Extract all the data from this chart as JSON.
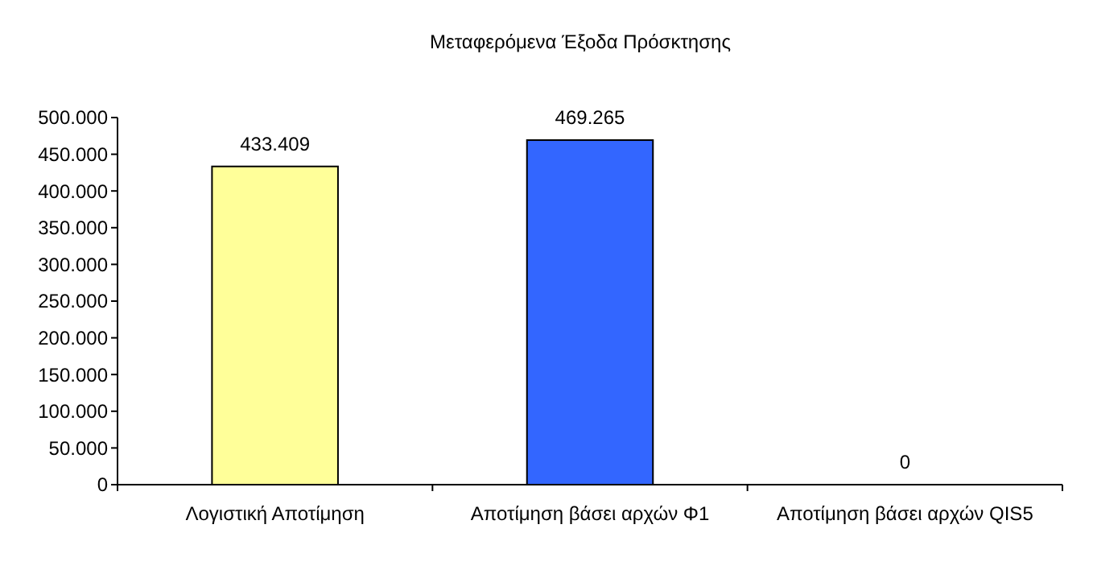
{
  "chart_data": {
    "type": "bar",
    "title": "Μεταφερόμενα Έξοδα Πρόσκτησης",
    "categories": [
      "Λογιστική Αποτίμηση",
      "Αποτίμηση βάσει αρχών Φ1",
      "Αποτίμηση βάσει αρχών QIS5"
    ],
    "values": [
      433409,
      469265,
      0
    ],
    "colors": [
      "#ffff99",
      "#3366ff",
      "#999999"
    ],
    "value_labels": [
      "433.409",
      "469.265",
      "0"
    ],
    "ylim": [
      0,
      500000
    ],
    "yticks": [
      {
        "value": 0,
        "label": "0"
      },
      {
        "value": 50000,
        "label": "50.000"
      },
      {
        "value": 100000,
        "label": "100.000"
      },
      {
        "value": 150000,
        "label": "150.000"
      },
      {
        "value": 200000,
        "label": "200.000"
      },
      {
        "value": 250000,
        "label": "250.000"
      },
      {
        "value": 300000,
        "label": "300.000"
      },
      {
        "value": 350000,
        "label": "350.000"
      },
      {
        "value": 400000,
        "label": "400.000"
      },
      {
        "value": 450000,
        "label": "450.000"
      },
      {
        "value": 500000,
        "label": "500.000"
      }
    ],
    "grid": false
  }
}
